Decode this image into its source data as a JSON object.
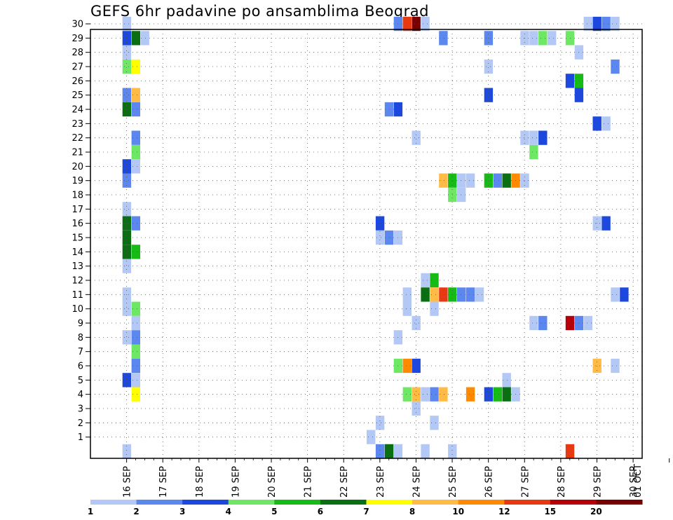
{
  "chart_data": {
    "type": "heatmap",
    "title": "GEFS 6hr padavine po ansamblima Beograd",
    "xlabel": "",
    "ylabel": "",
    "x_ticks": [
      "16 SEP",
      "17 SEP",
      "18 SEP",
      "19 SEP",
      "20 SEP",
      "21 SEP",
      "22 SEP",
      "23 SEP",
      "24 SEP",
      "25 SEP",
      "26 SEP",
      "27 SEP",
      "28 SEP",
      "29 SEP",
      "30 SEP",
      "01 OCT"
    ],
    "y_ticks": [
      "1",
      "2",
      "3",
      "4",
      "5",
      "6",
      "7",
      "8",
      "9",
      "10",
      "11",
      "12",
      "13",
      "14",
      "15",
      "16",
      "17",
      "18",
      "19",
      "20",
      "21",
      "22",
      "23",
      "24",
      "25",
      "26",
      "27",
      "28",
      "29",
      "30"
    ],
    "x_unit": "6-hour steps from 16 SEP 00Z",
    "grid": true,
    "colorbar": {
      "labels": [
        "1",
        "2",
        "3",
        "4",
        "5",
        "6",
        "7",
        "8",
        "10",
        "12",
        "15",
        "20"
      ],
      "colors": [
        "#b3c8f5",
        "#5b87ee",
        "#1c48dd",
        "#6ee864",
        "#16bb16",
        "#0a6e12",
        "#ffff00",
        "#ffbb45",
        "#ff8a00",
        "#e83a12",
        "#b5000b",
        "#780000"
      ]
    },
    "level_colors": {
      "1": "#b3c8f5",
      "2": "#5b87ee",
      "3": "#1c48dd",
      "4": "#6ee864",
      "5": "#16bb16",
      "6": "#0a6e12",
      "7": "#ffff00",
      "8": "#ffbb45",
      "10": "#ff8a00",
      "12": "#e83a12",
      "15": "#b5000b",
      "20": "#780000"
    },
    "cells": [
      [
        4,
        30,
        1
      ],
      [
        4,
        29,
        3
      ],
      [
        5,
        29,
        6
      ],
      [
        6,
        29,
        1
      ],
      [
        4,
        28,
        1
      ],
      [
        4,
        27,
        4
      ],
      [
        5,
        27,
        7
      ],
      [
        4,
        25,
        2
      ],
      [
        5,
        25,
        8
      ],
      [
        4,
        24,
        6
      ],
      [
        5,
        24,
        2
      ],
      [
        5,
        22,
        2
      ],
      [
        5,
        21,
        4
      ],
      [
        4,
        20,
        3
      ],
      [
        5,
        20,
        1
      ],
      [
        4,
        19,
        2
      ],
      [
        4,
        17,
        1
      ],
      [
        4,
        16,
        6
      ],
      [
        5,
        16,
        2
      ],
      [
        4,
        15,
        6
      ],
      [
        4,
        14,
        6
      ],
      [
        5,
        14,
        5
      ],
      [
        4,
        13,
        1
      ],
      [
        4,
        11,
        1
      ],
      [
        4,
        10,
        1
      ],
      [
        5,
        10,
        4
      ],
      [
        5,
        9,
        1
      ],
      [
        4,
        8,
        1
      ],
      [
        5,
        8,
        2
      ],
      [
        5,
        7,
        4
      ],
      [
        5,
        6,
        2
      ],
      [
        4,
        5,
        3
      ],
      [
        5,
        5,
        1
      ],
      [
        5,
        4,
        7
      ],
      [
        4,
        0,
        1
      ],
      [
        34,
        8,
        1
      ],
      [
        31,
        1,
        1
      ],
      [
        32,
        2,
        1
      ],
      [
        32,
        16,
        3
      ],
      [
        32,
        15,
        1
      ],
      [
        33,
        15,
        2
      ],
      [
        34,
        15,
        1
      ],
      [
        33,
        24,
        2
      ],
      [
        34,
        24,
        3
      ],
      [
        33,
        0,
        1
      ],
      [
        32,
        0,
        2
      ],
      [
        34,
        0,
        1
      ],
      [
        33,
        0,
        6
      ],
      [
        34,
        30,
        2
      ],
      [
        35,
        30,
        12
      ],
      [
        36,
        30,
        20
      ],
      [
        37,
        30,
        1
      ],
      [
        36,
        22,
        1
      ],
      [
        36,
        9,
        1
      ],
      [
        36,
        3,
        1
      ],
      [
        35,
        11,
        1
      ],
      [
        35,
        10,
        1
      ],
      [
        37,
        12,
        1
      ],
      [
        38,
        12,
        5
      ],
      [
        37,
        11,
        6
      ],
      [
        38,
        11,
        8
      ],
      [
        39,
        11,
        12
      ],
      [
        40,
        11,
        5
      ],
      [
        41,
        11,
        2
      ],
      [
        42,
        11,
        2
      ],
      [
        43,
        11,
        1
      ],
      [
        38,
        10,
        1
      ],
      [
        34,
        6,
        4
      ],
      [
        35,
        6,
        10
      ],
      [
        36,
        6,
        3
      ],
      [
        35,
        4,
        4
      ],
      [
        36,
        4,
        8
      ],
      [
        37,
        4,
        1
      ],
      [
        38,
        4,
        2
      ],
      [
        39,
        4,
        8
      ],
      [
        38,
        2,
        1
      ],
      [
        37,
        0,
        1
      ],
      [
        40,
        0,
        1
      ],
      [
        39,
        29,
        2
      ],
      [
        39,
        19,
        8
      ],
      [
        40,
        19,
        5
      ],
      [
        41,
        19,
        1
      ],
      [
        42,
        19,
        1
      ],
      [
        40,
        18,
        4
      ],
      [
        41,
        18,
        1
      ],
      [
        42,
        4,
        10
      ],
      [
        44,
        29,
        2
      ],
      [
        44,
        27,
        1
      ],
      [
        44,
        25,
        3
      ],
      [
        44,
        19,
        5
      ],
      [
        45,
        19,
        2
      ],
      [
        46,
        19,
        6
      ],
      [
        47,
        19,
        10
      ],
      [
        48,
        19,
        1
      ],
      [
        44,
        4,
        3
      ],
      [
        45,
        4,
        5
      ],
      [
        46,
        4,
        6
      ],
      [
        47,
        4,
        1
      ],
      [
        46,
        5,
        1
      ],
      [
        48,
        29,
        1
      ],
      [
        49,
        29,
        1
      ],
      [
        50,
        29,
        4
      ],
      [
        51,
        29,
        1
      ],
      [
        48,
        22,
        1
      ],
      [
        49,
        22,
        1
      ],
      [
        50,
        22,
        3
      ],
      [
        49,
        21,
        4
      ],
      [
        49,
        9,
        1
      ],
      [
        50,
        9,
        2
      ],
      [
        53,
        29,
        4
      ],
      [
        53,
        0,
        12
      ],
      [
        54,
        28,
        1
      ],
      [
        53,
        26,
        3
      ],
      [
        54,
        26,
        5
      ],
      [
        54,
        25,
        3
      ],
      [
        53,
        9,
        15
      ],
      [
        54,
        9,
        2
      ],
      [
        55,
        9,
        1
      ],
      [
        56,
        30,
        3
      ],
      [
        57,
        30,
        2
      ],
      [
        58,
        30,
        1
      ],
      [
        56,
        23,
        3
      ],
      [
        57,
        23,
        1
      ],
      [
        56,
        16,
        1
      ],
      [
        57,
        16,
        3
      ],
      [
        56,
        6,
        8
      ],
      [
        58,
        27,
        2
      ],
      [
        58,
        11,
        1
      ],
      [
        59,
        11,
        3
      ],
      [
        58,
        6,
        1
      ],
      [
        55,
        30,
        1
      ]
    ]
  }
}
